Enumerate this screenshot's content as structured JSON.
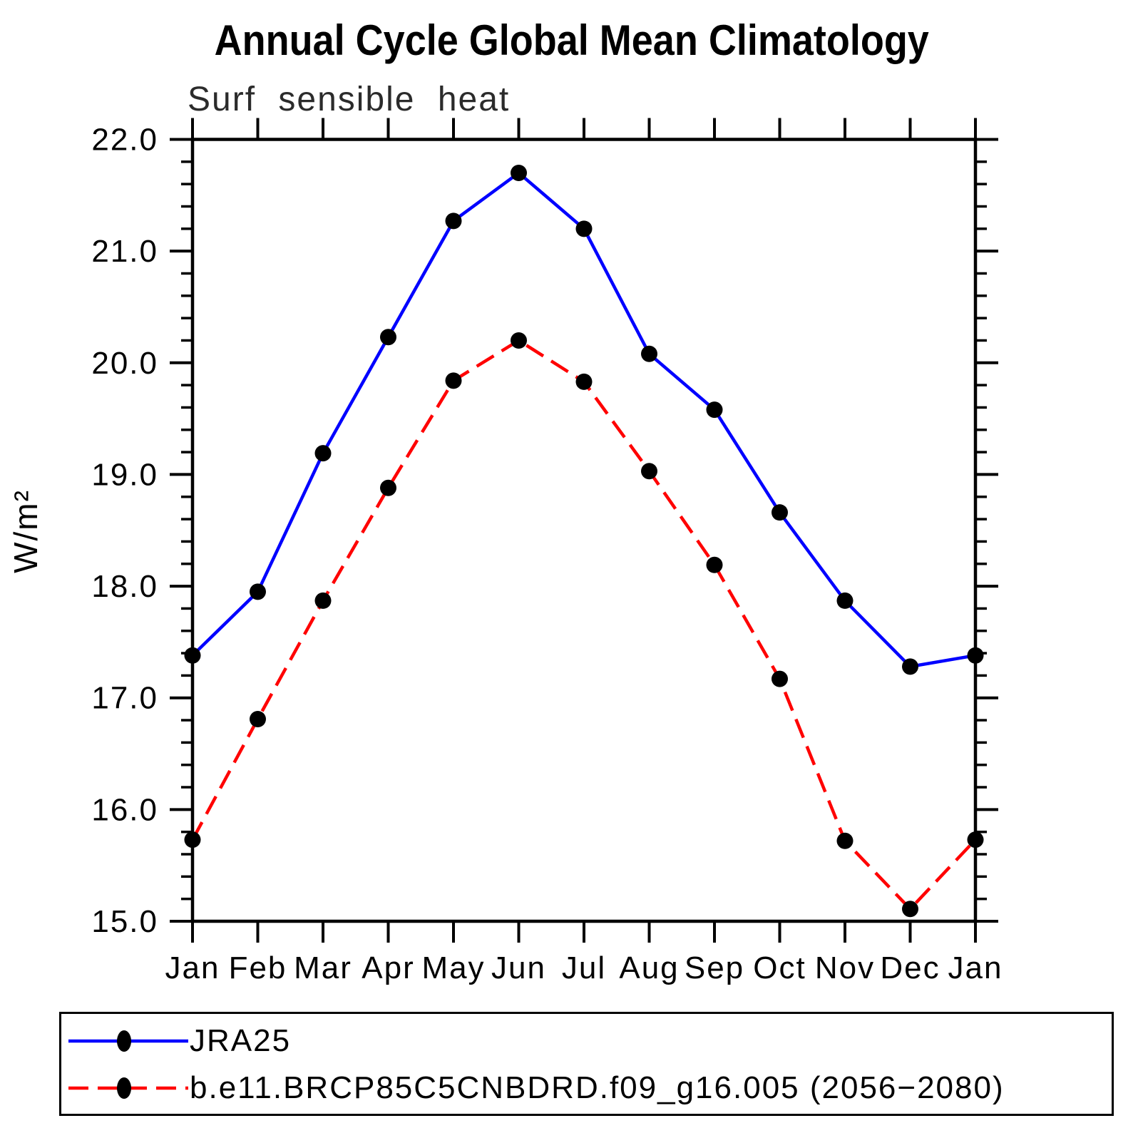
{
  "page": {
    "background": "#ffffff"
  },
  "chart_data": {
    "type": "line",
    "title": "Annual Cycle Global Mean Climatology",
    "subtitle": "Surf sensible heat",
    "ylabel": "W/m²",
    "categories": [
      "Jan",
      "Feb",
      "Mar",
      "Apr",
      "May",
      "Jun",
      "Jul",
      "Aug",
      "Sep",
      "Oct",
      "Nov",
      "Dec",
      "Jan"
    ],
    "ylim": [
      15.0,
      22.0
    ],
    "ytick_interval_major": 1.0,
    "ytick_interval_minor": 0.2,
    "ytick_labels": [
      "22.0",
      "21.0",
      "20.0",
      "19.0",
      "18.0",
      "17.0",
      "16.0",
      "15.0"
    ],
    "grid": false,
    "legend_position": "bottom-left-box",
    "axis_color": "#000000",
    "marker_color": "#000000",
    "series": [
      {
        "name": "JRA25",
        "color": "#0000ff",
        "line_style": "solid",
        "marker": "filled-circle",
        "values": [
          17.38,
          17.95,
          19.19,
          20.23,
          21.27,
          21.7,
          21.2,
          20.08,
          19.58,
          18.66,
          17.87,
          17.28,
          17.38
        ]
      },
      {
        "name": "b.e11.BRCP85C5CNBDRD.f09_g16.005 (2056−2080)",
        "color": "#ff0000",
        "line_style": "dashed",
        "marker": "filled-circle",
        "values": [
          15.73,
          16.81,
          17.87,
          18.88,
          19.84,
          20.2,
          19.83,
          19.03,
          18.19,
          17.17,
          15.72,
          15.11,
          15.73
        ]
      }
    ]
  }
}
